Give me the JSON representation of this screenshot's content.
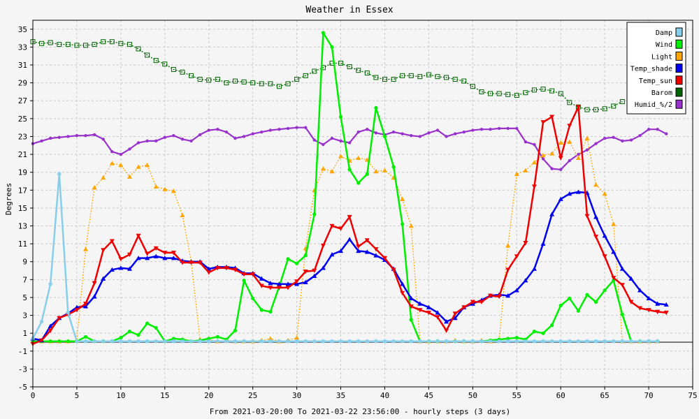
{
  "chart_data": {
    "type": "line",
    "title": "Weather in Essex",
    "xlabel": "From 2021-03-20:00 To 2021-03-22 23:56:00 - hourly steps (3 days)",
    "ylabel": "Degrees",
    "xlim": [
      0,
      75
    ],
    "ylim": [
      -5,
      36
    ],
    "x_ticks": [
      0,
      5,
      10,
      15,
      20,
      25,
      30,
      35,
      40,
      45,
      50,
      55,
      60,
      65,
      70,
      75
    ],
    "y_ticks": [
      -5,
      -3,
      -1,
      1,
      3,
      5,
      7,
      9,
      11,
      13,
      15,
      17,
      19,
      21,
      23,
      25,
      27,
      29,
      31,
      33,
      35
    ],
    "grid": true,
    "legend_position": "top-right",
    "series": [
      {
        "name": "Damp",
        "color": "#87ceeb",
        "values": [
          0.4,
          2.3,
          6.5,
          18.8,
          3.3,
          0.1,
          0.1,
          0.1,
          0.1,
          0.1,
          0.1,
          0.1,
          0.1,
          0.1,
          0.1,
          0.1,
          0.1,
          0.1,
          0.1,
          0.1,
          0.1,
          0.1,
          0.1,
          0.1,
          0.1,
          0.1,
          0.1,
          0.1,
          0.1,
          0.1,
          0.1,
          0.1,
          0.1,
          0.1,
          0.1,
          0.1,
          0.1,
          0.1,
          0.1,
          0.1,
          0.1,
          0.1,
          0.1,
          0.1,
          0.1,
          0.1,
          0.1,
          0.1,
          0.1,
          0.1,
          0.1,
          0.1,
          0.1,
          0.1,
          0.1,
          0.1,
          0.1,
          0.1,
          0.1,
          0.1,
          0.1,
          0.1,
          0.1,
          0.1,
          0.1,
          0.1,
          0.1,
          0.1,
          0.1,
          0.1,
          0.1,
          0.1
        ]
      },
      {
        "name": "Wind",
        "color": "#00ee00",
        "values": [
          0.1,
          0.1,
          0.1,
          0.1,
          0.1,
          0.1,
          0.6,
          0.1,
          0.1,
          0.1,
          0.5,
          1.2,
          0.8,
          2.1,
          1.6,
          0.1,
          0.4,
          0.3,
          0.1,
          0.2,
          0.4,
          0.6,
          0.3,
          1.3,
          6.9,
          4.9,
          3.6,
          3.4,
          6.2,
          9.3,
          8.8,
          9.7,
          14.3,
          34.6,
          33.0,
          25.2,
          19.3,
          17.8,
          18.8,
          26.2,
          23.0,
          19.6,
          13.2,
          2.5,
          0.1,
          0.1,
          0.1,
          0.1,
          0.1,
          0.1,
          0.1,
          0.1,
          0.2,
          0.3,
          0.4,
          0.5,
          0.3,
          1.2,
          1.0,
          1.9,
          4.1,
          4.9,
          3.5,
          5.3,
          4.5,
          5.8,
          6.9,
          3.1,
          0.1,
          0.1,
          0.1,
          0.1
        ]
      },
      {
        "name": "Light",
        "color": "#ffa500",
        "values": [
          0.1,
          0.1,
          0.1,
          0.1,
          0.1,
          0.2,
          10.4,
          17.3,
          18.4,
          20.0,
          19.8,
          18.5,
          19.6,
          19.8,
          17.4,
          17.1,
          16.9,
          14.2,
          9.0,
          0.3,
          0.3,
          0.1,
          0.2,
          0.1,
          0.1,
          0.1,
          0.2,
          0.4,
          0.1,
          0.2,
          0.5,
          10.5,
          17.0,
          19.4,
          19.1,
          20.8,
          20.3,
          20.6,
          20.4,
          19.1,
          19.2,
          18.4,
          16.0,
          13.0,
          0.1,
          0.1,
          0.1,
          0.1,
          0.2,
          0.1,
          0.1,
          0.2,
          0.1,
          0.2,
          10.8,
          18.8,
          19.2,
          20.1,
          20.9,
          21.1,
          22.3,
          22.4,
          20.6,
          22.8,
          17.6,
          16.6,
          13.2,
          0.1,
          0.1,
          0.1,
          0.1,
          0.1
        ]
      },
      {
        "name": "Temp_shade",
        "color": "#0000ee",
        "values": [
          0.4,
          0.2,
          1.8,
          2.7,
          3.2,
          3.9,
          4.0,
          5.1,
          7.1,
          8.1,
          8.3,
          8.2,
          9.4,
          9.4,
          9.6,
          9.4,
          9.4,
          9.1,
          9.0,
          9.0,
          8.2,
          8.4,
          8.4,
          8.3,
          7.7,
          7.7,
          7.1,
          6.6,
          6.5,
          6.5,
          6.5,
          6.7,
          7.4,
          8.3,
          9.8,
          10.2,
          11.5,
          10.2,
          10.1,
          9.7,
          9.2,
          8.2,
          6.5,
          4.9,
          4.3,
          3.9,
          3.3,
          2.3,
          2.7,
          3.9,
          4.3,
          4.7,
          5.2,
          5.3,
          5.2,
          5.8,
          6.9,
          8.2,
          11.0,
          14.3,
          16.0,
          16.6,
          16.8,
          16.7,
          14.0,
          11.9,
          10.1,
          8.2,
          7.1,
          5.8,
          4.9,
          4.3,
          4.2
        ]
      },
      {
        "name": "Temp_sun",
        "color": "#ee0000",
        "values": [
          -0.2,
          0.2,
          1.3,
          2.7,
          3.1,
          3.6,
          4.3,
          6.6,
          10.3,
          11.3,
          9.3,
          9.8,
          11.9,
          9.9,
          10.5,
          10.0,
          10.0,
          8.9,
          8.9,
          8.9,
          7.8,
          8.3,
          8.3,
          8.1,
          7.6,
          7.6,
          6.3,
          6.1,
          6.1,
          6.1,
          6.8,
          7.9,
          8.0,
          10.8,
          13.0,
          12.7,
          14.0,
          10.7,
          11.4,
          10.4,
          9.4,
          8.1,
          5.5,
          4.0,
          3.6,
          3.3,
          2.8,
          1.3,
          3.2,
          3.9,
          4.5,
          4.5,
          5.2,
          5.1,
          8.1,
          9.6,
          11.1,
          17.4,
          24.6,
          25.2,
          20.6,
          24.2,
          26.3,
          14.1,
          11.8,
          9.6,
          7.2,
          6.4,
          4.5,
          3.8,
          3.6,
          3.4,
          3.3
        ]
      },
      {
        "name": "Barom",
        "color": "#006400",
        "values": [
          33.6,
          33.4,
          33.5,
          33.3,
          33.3,
          33.2,
          33.2,
          33.3,
          33.6,
          33.6,
          33.4,
          33.3,
          32.8,
          32.1,
          31.5,
          31.1,
          30.5,
          30.2,
          29.8,
          29.4,
          29.3,
          29.4,
          29.0,
          29.2,
          29.1,
          29.0,
          28.9,
          28.9,
          28.6,
          28.9,
          29.4,
          29.8,
          30.3,
          30.7,
          31.2,
          31.2,
          30.8,
          30.4,
          30.1,
          29.6,
          29.4,
          29.4,
          29.8,
          29.8,
          29.7,
          29.9,
          29.7,
          29.6,
          29.4,
          29.2,
          28.6,
          28.0,
          27.8,
          27.8,
          27.7,
          27.6,
          27.9,
          28.2,
          28.3,
          28.1,
          27.8,
          26.8,
          26.3,
          26.0,
          26.0,
          26.1,
          26.4,
          26.9
        ]
      },
      {
        "name": "Humid_%/2",
        "color": "#9932cc",
        "values": [
          22.2,
          22.5,
          22.8,
          22.9,
          23.0,
          23.1,
          23.1,
          23.2,
          22.7,
          21.3,
          21.0,
          21.6,
          22.3,
          22.5,
          22.5,
          22.9,
          23.1,
          22.7,
          22.5,
          23.2,
          23.7,
          23.8,
          23.5,
          22.8,
          23.0,
          23.3,
          23.5,
          23.7,
          23.8,
          23.9,
          24.0,
          24.0,
          22.6,
          22.1,
          22.8,
          22.5,
          22.3,
          23.5,
          23.8,
          23.4,
          23.2,
          23.5,
          23.3,
          23.1,
          23.0,
          23.4,
          23.7,
          23.0,
          23.3,
          23.5,
          23.7,
          23.8,
          23.8,
          23.9,
          23.9,
          23.9,
          22.4,
          22.1,
          20.5,
          19.4,
          19.3,
          20.3,
          21.0,
          21.5,
          22.2,
          22.8,
          22.9,
          22.5,
          22.6,
          23.1,
          23.8,
          23.8,
          23.3
        ]
      }
    ]
  }
}
